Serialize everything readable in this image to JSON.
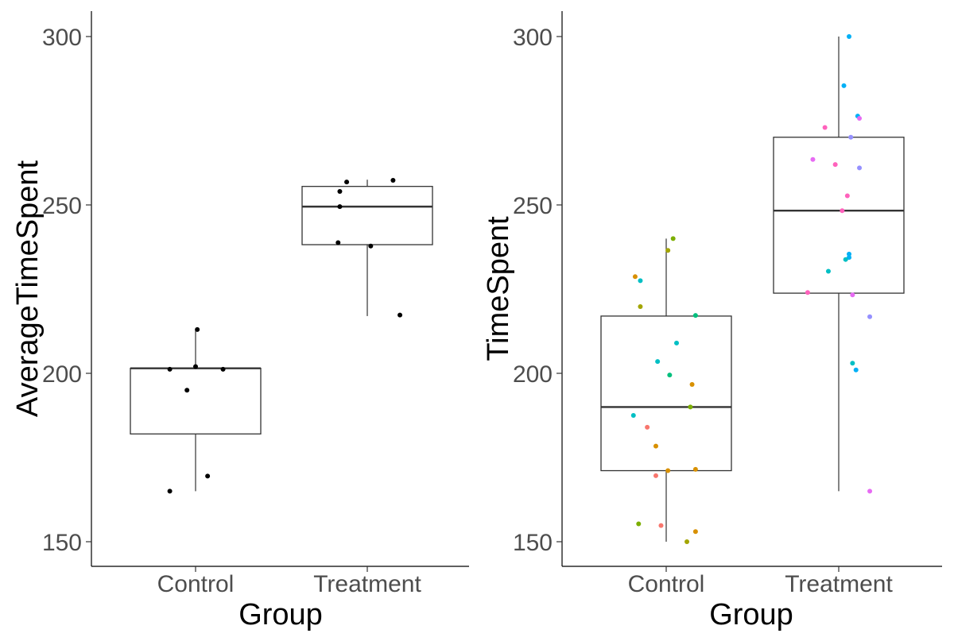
{
  "chart_data": [
    {
      "type": "boxplot",
      "xlabel": "Group",
      "ylabel": "AverageTimeSpent",
      "categories": [
        "Control",
        "Treatment"
      ],
      "ylim": [
        143,
        308
      ],
      "yticks": [
        150,
        200,
        250,
        300
      ],
      "grid": false,
      "boxes": [
        {
          "category": "Control",
          "min": 165,
          "q1": 182,
          "median": 201.5,
          "q3": 201.5,
          "max": 213
        },
        {
          "category": "Treatment",
          "min": 217,
          "q1": 238.2,
          "median": 249.5,
          "q3": 255.5,
          "max": 257.5
        }
      ],
      "points": [
        {
          "category": "Control",
          "offset": -0.15,
          "y": 201.2
        },
        {
          "category": "Control",
          "offset": -0.05,
          "y": 195
        },
        {
          "category": "Control",
          "offset": 0.0,
          "y": 202
        },
        {
          "category": "Control",
          "offset": 0.01,
          "y": 213
        },
        {
          "category": "Control",
          "offset": 0.16,
          "y": 201.2
        },
        {
          "category": "Control",
          "offset": 0.07,
          "y": 169.5
        },
        {
          "category": "Control",
          "offset": -0.15,
          "y": 165
        },
        {
          "category": "Treatment",
          "offset": -0.17,
          "y": 238.8
        },
        {
          "category": "Treatment",
          "offset": -0.16,
          "y": 249.5
        },
        {
          "category": "Treatment",
          "offset": -0.16,
          "y": 254
        },
        {
          "category": "Treatment",
          "offset": -0.12,
          "y": 256.8
        },
        {
          "category": "Treatment",
          "offset": 0.02,
          "y": 237.8
        },
        {
          "category": "Treatment",
          "offset": 0.15,
          "y": 257.3
        },
        {
          "category": "Treatment",
          "offset": 0.19,
          "y": 217.3
        }
      ],
      "point_color": "#000000"
    },
    {
      "type": "boxplot",
      "xlabel": "Group",
      "ylabel": "TimeSpent",
      "categories": [
        "Control",
        "Treatment"
      ],
      "ylim": [
        143,
        308
      ],
      "yticks": [
        150,
        200,
        250,
        300
      ],
      "grid": false,
      "boxes": [
        {
          "category": "Control",
          "min": 150,
          "q1": 171.1,
          "median": 190,
          "q3": 217,
          "max": 240
        },
        {
          "category": "Treatment",
          "min": 165,
          "q1": 223.8,
          "median": 248.3,
          "q3": 270.1,
          "max": 300
        }
      ],
      "points": [
        {
          "category": "Control",
          "offset": 0.04,
          "y": 240,
          "color": "#7CAE00"
        },
        {
          "category": "Control",
          "offset": 0.01,
          "y": 236.5,
          "color": "#A3A500"
        },
        {
          "category": "Control",
          "offset": -0.18,
          "y": 228.7,
          "color": "#D89000"
        },
        {
          "category": "Control",
          "offset": -0.15,
          "y": 227.5,
          "color": "#00BFC4"
        },
        {
          "category": "Control",
          "offset": -0.15,
          "y": 219.8,
          "color": "#A3A500"
        },
        {
          "category": "Control",
          "offset": 0.17,
          "y": 217.2,
          "color": "#00BF7D"
        },
        {
          "category": "Control",
          "offset": 0.06,
          "y": 209,
          "color": "#00BFC4"
        },
        {
          "category": "Control",
          "offset": -0.05,
          "y": 203.5,
          "color": "#00BFC4"
        },
        {
          "category": "Control",
          "offset": 0.02,
          "y": 199.5,
          "color": "#00BF7D"
        },
        {
          "category": "Control",
          "offset": 0.15,
          "y": 196.7,
          "color": "#D89000"
        },
        {
          "category": "Control",
          "offset": 0.14,
          "y": 190,
          "color": "#7CAE00"
        },
        {
          "category": "Control",
          "offset": -0.19,
          "y": 187.5,
          "color": "#00BFC4"
        },
        {
          "category": "Control",
          "offset": -0.11,
          "y": 184,
          "color": "#F8766D"
        },
        {
          "category": "Control",
          "offset": -0.06,
          "y": 178.4,
          "color": "#D89000"
        },
        {
          "category": "Control",
          "offset": 0.17,
          "y": 171.5,
          "color": "#D89000"
        },
        {
          "category": "Control",
          "offset": 0.01,
          "y": 171.1,
          "color": "#D89000"
        },
        {
          "category": "Control",
          "offset": -0.06,
          "y": 169.6,
          "color": "#F8766D"
        },
        {
          "category": "Control",
          "offset": -0.16,
          "y": 155.3,
          "color": "#7CAE00"
        },
        {
          "category": "Control",
          "offset": -0.03,
          "y": 154.8,
          "color": "#F8766D"
        },
        {
          "category": "Control",
          "offset": 0.17,
          "y": 153,
          "color": "#D89000"
        },
        {
          "category": "Control",
          "offset": 0.12,
          "y": 150,
          "color": "#A3A500"
        },
        {
          "category": "Treatment",
          "offset": 0.06,
          "y": 300,
          "color": "#00B0F6"
        },
        {
          "category": "Treatment",
          "offset": 0.03,
          "y": 285.4,
          "color": "#00B0F6"
        },
        {
          "category": "Treatment",
          "offset": 0.11,
          "y": 276.4,
          "color": "#00B0F6"
        },
        {
          "category": "Treatment",
          "offset": 0.12,
          "y": 275.7,
          "color": "#E76BF3"
        },
        {
          "category": "Treatment",
          "offset": -0.08,
          "y": 273,
          "color": "#FF62BC"
        },
        {
          "category": "Treatment",
          "offset": 0.07,
          "y": 270.1,
          "color": "#9590FF"
        },
        {
          "category": "Treatment",
          "offset": -0.15,
          "y": 263.5,
          "color": "#E76BF3"
        },
        {
          "category": "Treatment",
          "offset": -0.02,
          "y": 262,
          "color": "#FF62BC"
        },
        {
          "category": "Treatment",
          "offset": 0.12,
          "y": 261,
          "color": "#9590FF"
        },
        {
          "category": "Treatment",
          "offset": 0.05,
          "y": 252.7,
          "color": "#FF62BC"
        },
        {
          "category": "Treatment",
          "offset": 0.02,
          "y": 248.3,
          "color": "#FF62BC"
        },
        {
          "category": "Treatment",
          "offset": 0.06,
          "y": 235.4,
          "color": "#00B0F6"
        },
        {
          "category": "Treatment",
          "offset": 0.06,
          "y": 234.4,
          "color": "#00B0F6"
        },
        {
          "category": "Treatment",
          "offset": 0.04,
          "y": 233.8,
          "color": "#00BFC4"
        },
        {
          "category": "Treatment",
          "offset": -0.06,
          "y": 230.3,
          "color": "#00BFC4"
        },
        {
          "category": "Treatment",
          "offset": -0.18,
          "y": 224,
          "color": "#FF62BC"
        },
        {
          "category": "Treatment",
          "offset": 0.08,
          "y": 223.3,
          "color": "#E76BF3"
        },
        {
          "category": "Treatment",
          "offset": 0.18,
          "y": 216.8,
          "color": "#9590FF"
        },
        {
          "category": "Treatment",
          "offset": 0.08,
          "y": 203,
          "color": "#00BFC4"
        },
        {
          "category": "Treatment",
          "offset": 0.1,
          "y": 201,
          "color": "#00B0F6"
        },
        {
          "category": "Treatment",
          "offset": 0.18,
          "y": 165,
          "color": "#E76BF3"
        }
      ]
    }
  ]
}
